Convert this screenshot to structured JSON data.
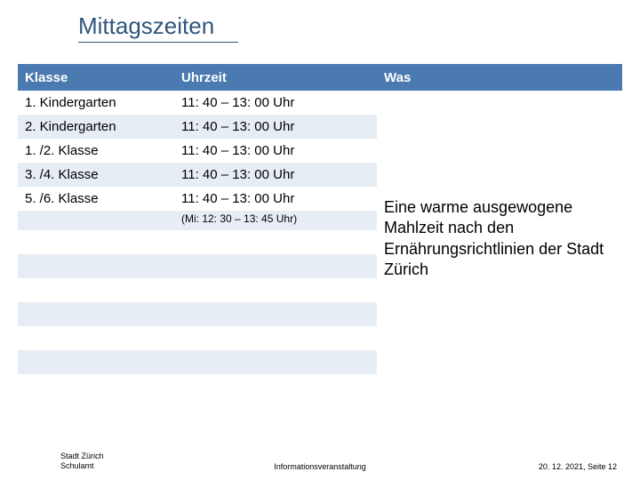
{
  "title": "Mittagszeiten",
  "headers": {
    "klasse": "Klasse",
    "uhrzeit": "Uhrzeit",
    "was": "Was"
  },
  "rows": [
    {
      "klasse": "1. Kindergarten",
      "uhrzeit": "11: 40 – 13: 00 Uhr",
      "note": ""
    },
    {
      "klasse": "2. Kindergarten",
      "uhrzeit": "11: 40 – 13: 00 Uhr",
      "note": ""
    },
    {
      "klasse": "1. /2. Klasse",
      "uhrzeit": "11: 40 – 13: 00 Uhr",
      "note": ""
    },
    {
      "klasse": "3. /4. Klasse",
      "uhrzeit": "11: 40 – 13: 00 Uhr",
      "note": ""
    },
    {
      "klasse": "5. /6. Klasse",
      "uhrzeit": "11: 40 – 13: 00 Uhr",
      "note": "(Mi: 12: 30 – 13: 45 Uhr)"
    }
  ],
  "empty_row_count": 7,
  "was_text": "Eine warme ausgewogene Mahlzeit nach den Ernährungsrichtlinien der Stadt Zürich",
  "footer": {
    "left_line1": "Stadt Zürich",
    "left_line2": "Schulamt",
    "center": "Informationsveranstaltung",
    "right": "20. 12. 2021, Seite 12"
  },
  "colors": {
    "header_bg": "#4a7ab0",
    "header_fg": "#ffffff",
    "row_even": "#e7edf4",
    "row_odd": "#ffffff",
    "title_color": "#31567c"
  }
}
